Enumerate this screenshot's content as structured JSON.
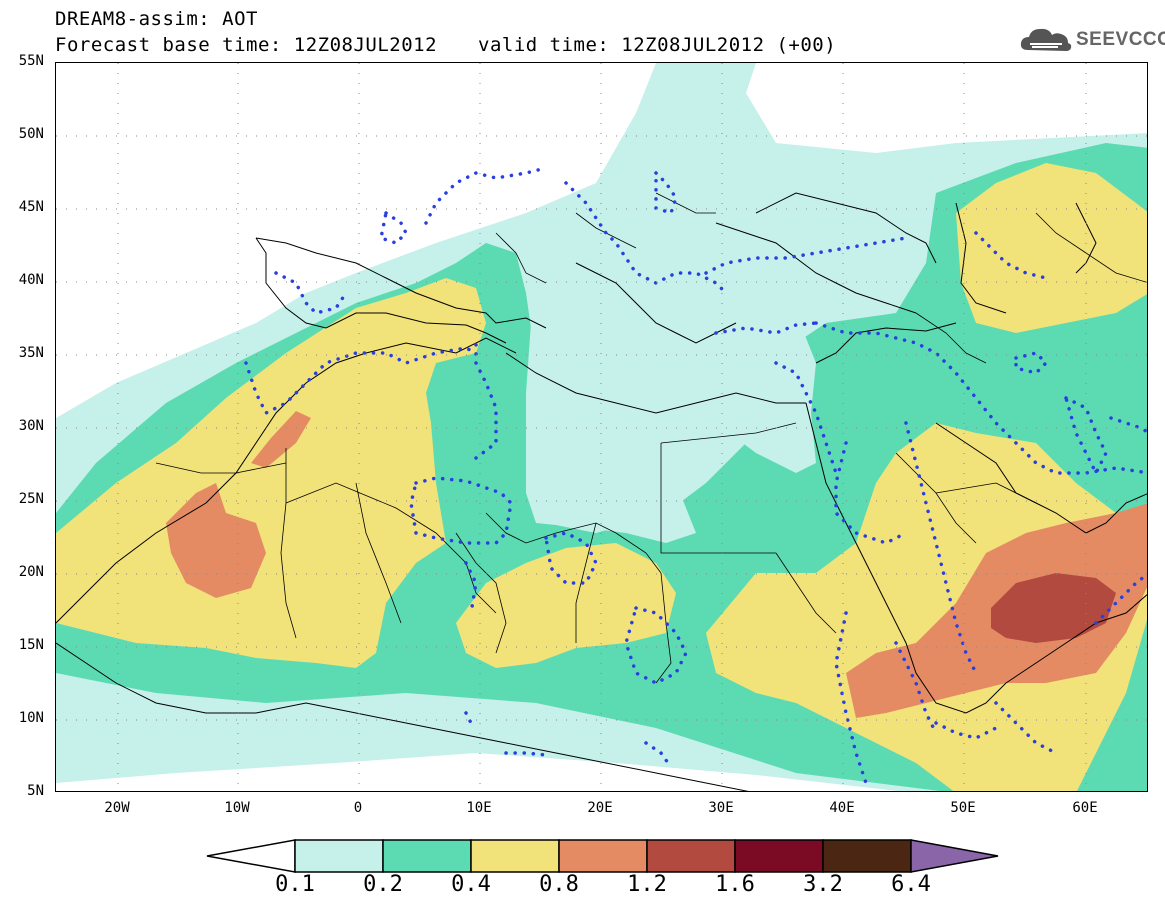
{
  "header": {
    "title": "DREAM8-assim: AOT",
    "base_time": "Forecast base time: 12Z08JUL2012",
    "valid_time": "valid time: 12Z08JUL2012 (+00)"
  },
  "logo": {
    "text": "SEEVCCC",
    "icon": "cloud-icon"
  },
  "map": {
    "lat_labels": [
      "55N",
      "50N",
      "45N",
      "40N",
      "35N",
      "30N",
      "25N",
      "20N",
      "15N",
      "10N",
      "5N"
    ],
    "lon_labels": [
      "20W",
      "10W",
      "0",
      "10E",
      "20E",
      "30E",
      "40E",
      "50E",
      "60E"
    ],
    "extent": {
      "lon_min": -25,
      "lon_max": 65,
      "lat_min": 5,
      "lat_max": 55
    }
  },
  "colorbar": {
    "labels": [
      "0.1",
      "0.2",
      "0.4",
      "0.8",
      "1.2",
      "1.6",
      "3.2",
      "6.4"
    ],
    "colors": [
      "#ffffff",
      "#c6f0ea",
      "#5cdbb2",
      "#f1e27a",
      "#e58b64",
      "#b24a40",
      "#7b0b25",
      "#4a2613",
      "#8a66a8"
    ]
  },
  "colors": {
    "contour_dotted": "#2a3fe0"
  }
}
